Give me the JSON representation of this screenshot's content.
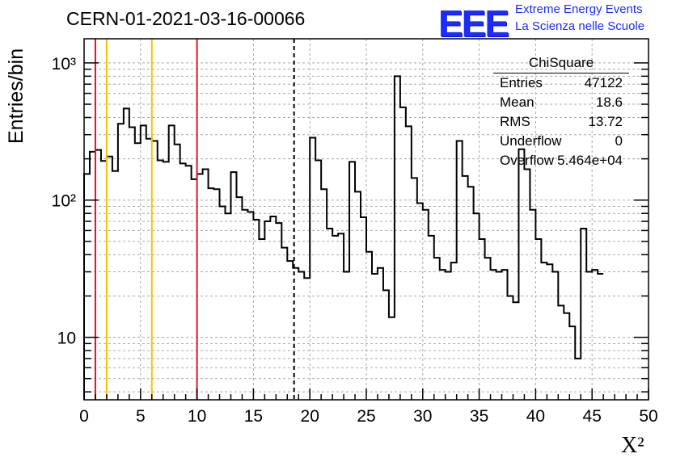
{
  "header": {
    "run_id": "CERN-01-2021-03-16-00066",
    "logo_text": "EEE",
    "logo_line1": "Extreme Energy Events",
    "logo_line2": "La Scienza nelle Scuole"
  },
  "stats": {
    "title": "ChiSquare",
    "rows": [
      {
        "label": "Entries",
        "value": "47122"
      },
      {
        "label": "Mean",
        "value": "18.6"
      },
      {
        "label": "RMS",
        "value": "13.72"
      },
      {
        "label": "Underflow",
        "value": "0"
      },
      {
        "label": "Overflow",
        "value": "5.464e+04"
      }
    ]
  },
  "chart_data": {
    "type": "bar",
    "title": "CERN-01-2021-03-16-00066",
    "xlabel": "X²",
    "ylabel": "Entries/bin",
    "xlim": [
      0,
      50
    ],
    "ylim": [
      3.5,
      1500
    ],
    "y_scale": "log",
    "grid": true,
    "x_ticks": [
      "0",
      "5",
      "10",
      "15",
      "20",
      "25",
      "30",
      "35",
      "40",
      "45",
      "50"
    ],
    "y_ticks": [
      {
        "value": 10,
        "label": "10"
      },
      {
        "value": 100,
        "label": "10²"
      },
      {
        "value": 1000,
        "label": "10³"
      }
    ],
    "bin_width": 0.5,
    "values": [
      155,
      225,
      232,
      193,
      208,
      163,
      360,
      465,
      340,
      260,
      350,
      280,
      270,
      195,
      190,
      350,
      255,
      185,
      178,
      142,
      155,
      168,
      122,
      120,
      90,
      80,
      160,
      105,
      85,
      82,
      72,
      52,
      70,
      76,
      68,
      45,
      36,
      32,
      30,
      27,
      285,
      195,
      120,
      62,
      55,
      57,
      30,
      190,
      115,
      75,
      42,
      29,
      32,
      22,
      14,
      800,
      475,
      345,
      145,
      95,
      85,
      55,
      38,
      31,
      30,
      35,
      270,
      150,
      125,
      80,
      52,
      38,
      31,
      30,
      31,
      20,
      18,
      235,
      168,
      85,
      52,
      35,
      34,
      30,
      17,
      15,
      12,
      7,
      62,
      30,
      31,
      29
    ],
    "vlines": [
      {
        "x": 1,
        "color": "#e8131b",
        "style": "solid"
      },
      {
        "x": 2,
        "color": "#f5c400",
        "style": "solid"
      },
      {
        "x": 6,
        "color": "#f5c400",
        "style": "solid"
      },
      {
        "x": 10,
        "color": "#e8131b",
        "style": "solid"
      },
      {
        "x": 18.6,
        "color": "#000000",
        "style": "dashed"
      }
    ]
  }
}
